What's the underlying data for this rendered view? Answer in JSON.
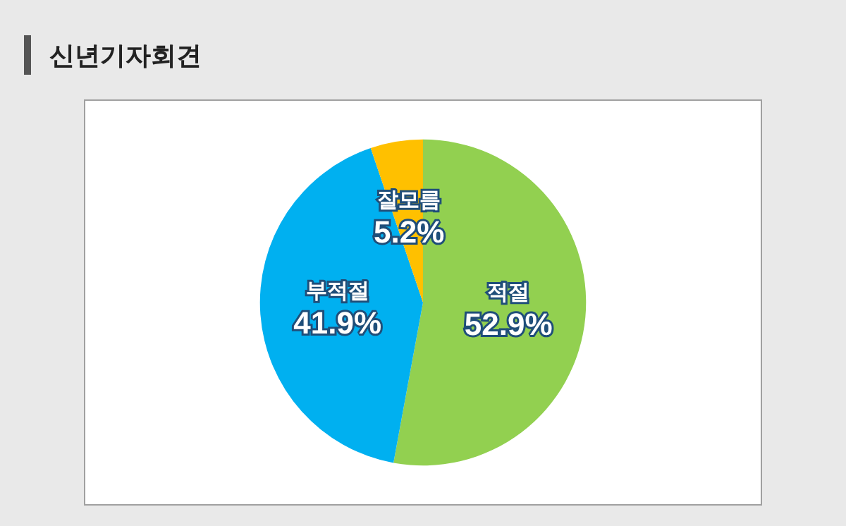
{
  "chart_data": {
    "type": "pie",
    "title": "신년기자회견",
    "categories": [
      "적절",
      "부적절",
      "잘모름"
    ],
    "values": [
      52.9,
      41.9,
      5.2
    ],
    "value_labels": [
      "52.9%",
      "41.9%",
      "5.2%"
    ],
    "colors": [
      "#92d050",
      "#00b0f0",
      "#ffc000"
    ],
    "legend": false
  }
}
